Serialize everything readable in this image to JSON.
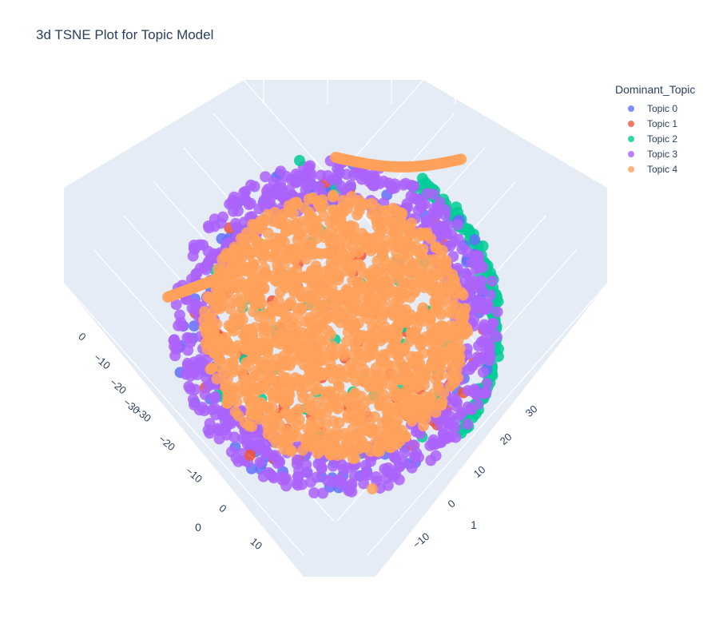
{
  "chart_data": {
    "type": "scatter",
    "subtype": "3d",
    "title": "3d TSNE Plot for Topic Model",
    "legend": {
      "title": "Dominant_Topic",
      "placement": "top-right"
    },
    "series": [
      {
        "name": "Topic 0",
        "color": "#636efa"
      },
      {
        "name": "Topic 1",
        "color": "#ef553b"
      },
      {
        "name": "Topic 2",
        "color": "#00cc96"
      },
      {
        "name": "Topic 3",
        "color": "#ab63fa"
      },
      {
        "name": "Topic 4",
        "color": "#ffa15a"
      }
    ],
    "axes": {
      "x": {
        "title": "0",
        "ticks": [
          "0",
          "−10",
          "−20",
          "−30"
        ]
      },
      "y": {
        "title": "0",
        "ticks": [
          "−30",
          "−20",
          "−10",
          "0",
          "10"
        ]
      },
      "z": {
        "title": "1",
        "ticks": [
          "30",
          "20",
          "10",
          "0",
          "−10"
        ]
      }
    },
    "background": "#e5ecf6",
    "grid": true
  }
}
